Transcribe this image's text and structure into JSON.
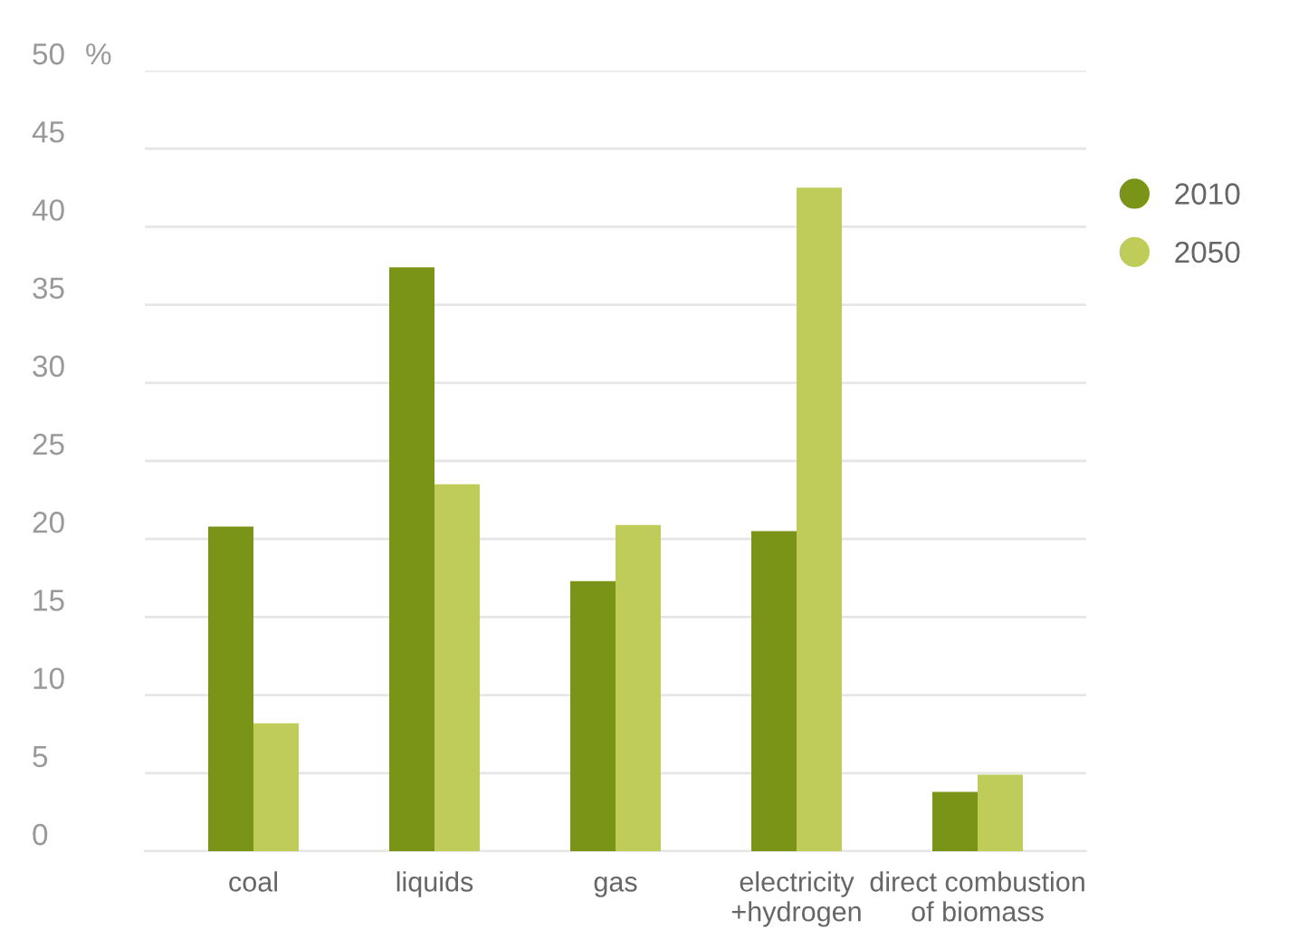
{
  "chart_data": {
    "type": "bar",
    "ylabel": "%",
    "categories": [
      "coal",
      "liquids",
      "gas",
      "electricity\n+hydrogen",
      "direct combustion\nof biomass"
    ],
    "series": [
      {
        "name": "2010",
        "color": "#7a9417",
        "values": [
          20.8,
          37.4,
          17.3,
          20.5,
          3.8
        ]
      },
      {
        "name": "2050",
        "color": "#bfcc5a",
        "values": [
          8.2,
          23.5,
          20.9,
          42.5,
          4.9
        ]
      }
    ],
    "ylim": [
      0,
      50
    ],
    "yticks": [
      0,
      5,
      10,
      15,
      20,
      25,
      30,
      35,
      40,
      45,
      50
    ],
    "grid": "y",
    "legend": "right"
  }
}
